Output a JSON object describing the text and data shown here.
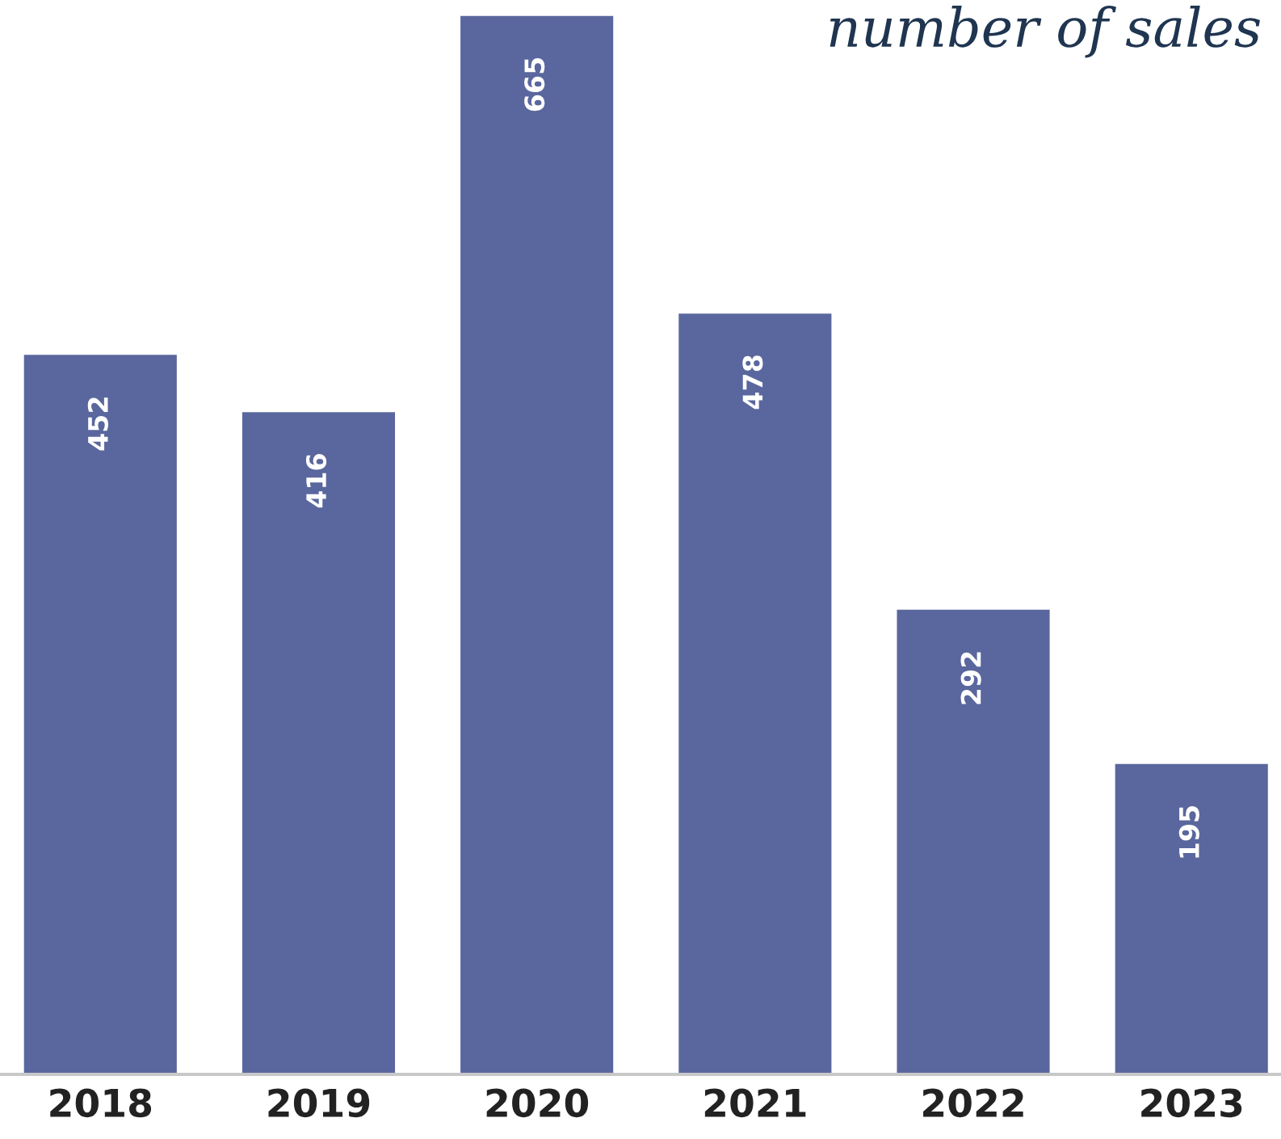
{
  "chart_data": {
    "type": "bar",
    "title": "number of sales",
    "categories": [
      "2018",
      "2019",
      "2020",
      "2021",
      "2022",
      "2023"
    ],
    "values": [
      452,
      416,
      665,
      478,
      292,
      195
    ],
    "color": "#5a679e",
    "data_labels": true,
    "grid": false,
    "legend": false
  }
}
